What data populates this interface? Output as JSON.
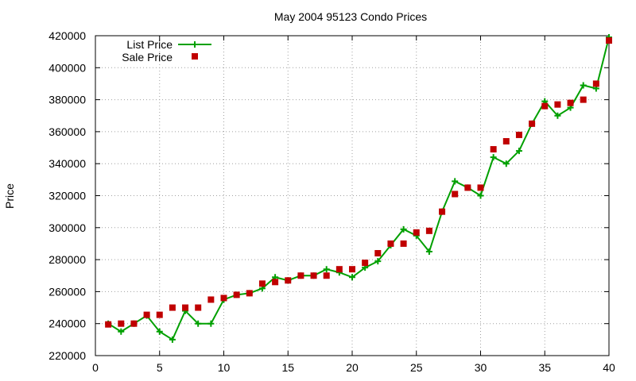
{
  "chart_data": {
    "type": "line",
    "title": "May 2004 95123 Condo Prices",
    "xlabel": "",
    "ylabel": "Price",
    "xlim": [
      0,
      40
    ],
    "ylim": [
      220000,
      420000
    ],
    "xticks": [
      "0",
      "5",
      "10",
      "15",
      "20",
      "25",
      "30",
      "35",
      "40"
    ],
    "yticks": [
      "220000",
      "240000",
      "260000",
      "280000",
      "300000",
      "320000",
      "340000",
      "360000",
      "380000",
      "400000",
      "420000"
    ],
    "grid": true,
    "legend_position": "top-left",
    "series": [
      {
        "name": "List Price",
        "style": "line-with-plus-markers",
        "color": "#00a000",
        "x": [
          1,
          2,
          3,
          4,
          5,
          6,
          7,
          8,
          9,
          10,
          11,
          12,
          13,
          14,
          15,
          16,
          17,
          18,
          19,
          20,
          21,
          22,
          23,
          24,
          25,
          26,
          27,
          28,
          29,
          30,
          31,
          32,
          33,
          34,
          35,
          36,
          37,
          38,
          39,
          40
        ],
        "values": [
          240000,
          235000,
          240000,
          245000,
          235000,
          230000,
          248000,
          240000,
          240000,
          255000,
          258000,
          259000,
          262000,
          269000,
          267000,
          270000,
          270000,
          274000,
          272000,
          269000,
          275000,
          279000,
          289000,
          299000,
          295000,
          285000,
          310000,
          329000,
          325000,
          320000,
          344000,
          340000,
          348000,
          365000,
          379000,
          370000,
          375000,
          389000,
          387000,
          419000
        ]
      },
      {
        "name": "Sale Price",
        "style": "square-markers",
        "color": "#c00000",
        "x": [
          1,
          2,
          3,
          4,
          5,
          6,
          7,
          8,
          9,
          10,
          11,
          12,
          13,
          14,
          15,
          16,
          17,
          18,
          19,
          20,
          21,
          22,
          23,
          24,
          25,
          26,
          27,
          28,
          29,
          30,
          31,
          32,
          33,
          34,
          35,
          36,
          37,
          38,
          39,
          40
        ],
        "values": [
          239500,
          240000,
          240000,
          245500,
          245500,
          250000,
          250000,
          250000,
          255000,
          256000,
          258000,
          259000,
          265000,
          266000,
          267000,
          270000,
          270000,
          270000,
          274000,
          274000,
          278000,
          284000,
          290000,
          290000,
          297000,
          298000,
          310000,
          321000,
          325000,
          325000,
          349000,
          354000,
          358000,
          365000,
          376000,
          377000,
          378000,
          380000,
          390000,
          417000
        ]
      }
    ]
  }
}
